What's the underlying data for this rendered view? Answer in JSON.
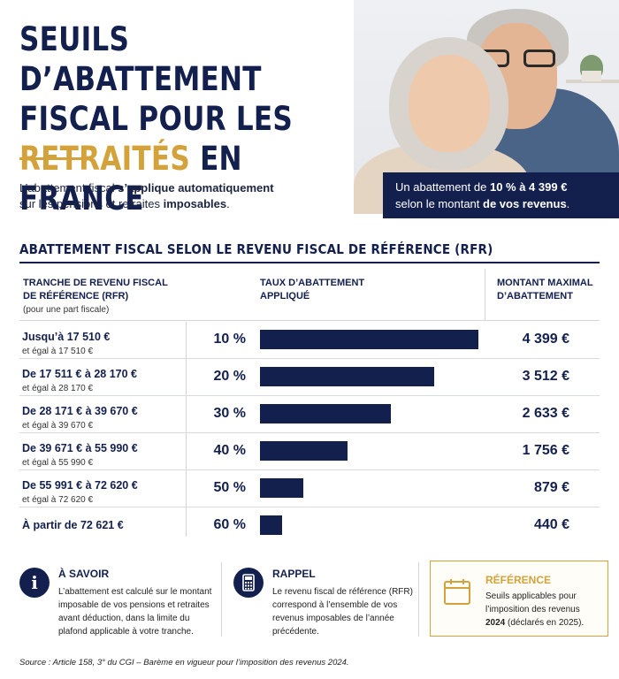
{
  "header": {
    "title_line1": "SEUILS D’ABATTEMENT",
    "title_line2": "FISCAL POUR LES",
    "title_line3_gold": "RETRAITÉS",
    "title_line3_rest": " EN FRANCE",
    "intro_part1": "L’abattement fiscal ",
    "intro_bold1": "s’applique automatiquement",
    "intro_part2": "sur les pensions et retraites ",
    "intro_bold2": "imposables",
    "intro_end": "."
  },
  "callout": {
    "part1": "Un abattement de ",
    "bold1": "10 % à 4 399 €",
    "part2": "selon le montant ",
    "bold2": "de vos revenus",
    "end": "."
  },
  "section_title": "ABATTEMENT FISCAL SELON LE REVENU FISCAL DE RÉFÉRENCE (RFR)",
  "columns": {
    "c1_line1": "TRANCHE DE REVENU FISCAL",
    "c1_line2": "DE RÉFÉRENCE (RFR)",
    "c1_sub": "(pour une part fiscale)",
    "c2_line1": "TAUX D’ABATTEMENT",
    "c2_line2": "APPLIQUÉ",
    "c3_line1": "MONTANT MAXIMAL",
    "c3_line2": "D’ABATTEMENT"
  },
  "chart_data": {
    "type": "bar",
    "categories": [
      "Jusqu’à 17 510 €",
      "De 17 511 € à 28 170 €",
      "De 28 171 € à 39 670 €",
      "De 39 671 € à 55 990 €",
      "De 55 991 € à 72 620 €",
      "À partir de 72 621 €"
    ],
    "category_sublabels": [
      "et égal à 17 510 €",
      "et égal à 28 170 €",
      "et égal à 39 670 €",
      "et égal à 55 990 €",
      "et égal à 72 620 €",
      ""
    ],
    "rate_labels": [
      "10 %",
      "20 %",
      "30 %",
      "40 %",
      "50 %",
      "60 %"
    ],
    "amount_labels": [
      "4 399 €",
      "3 512 €",
      "2 633 €",
      "1 756 €",
      "879 €",
      "440 €"
    ],
    "values": [
      4399,
      3512,
      2633,
      1756,
      879,
      440
    ],
    "bar_color": "#13204e"
  },
  "info_boxes": [
    {
      "icon": "info-icon",
      "title": "À SAVOIR",
      "text": "L’abattement est calculé sur le montant imposable de vos pensions et retraites avant déduction, dans la limite du plafond applicable à votre tranche."
    },
    {
      "icon": "calculator-icon",
      "title": "RAPPEL",
      "text": "Le revenu fiscal de référence (RFR) correspond à l’ensemble de vos revenus imposables de l’année précédente."
    }
  ],
  "reference_box": {
    "icon": "calendar-icon",
    "title": "RÉFÉRENCE",
    "text1": "Seuils applicables pour l’imposition des revenus ",
    "bold": "2024",
    "text2": " (déclarés en 2025)."
  },
  "source": "Source : Article 158, 3° du CGI – Barème en vigueur pour l’imposition des revenus 2024.",
  "colors": {
    "navy": "#13204e",
    "gold": "#d4a23a"
  }
}
